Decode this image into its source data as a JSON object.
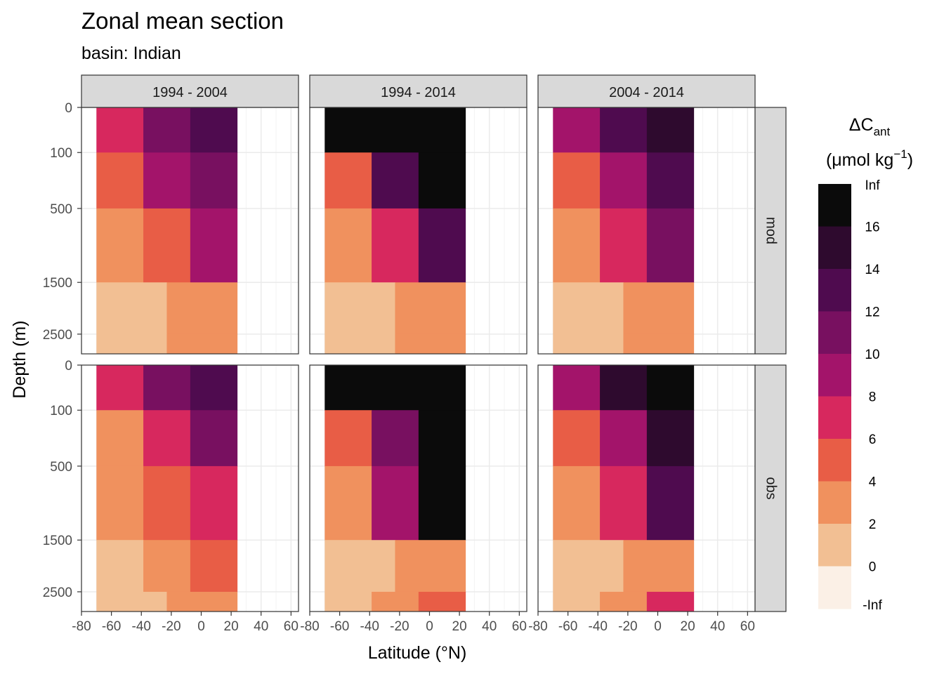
{
  "chart_data": {
    "type": "heatmap",
    "title": "Zonal mean section",
    "subtitle": "basin: Indian",
    "xlabel": "Latitude (°N)",
    "ylabel": "Depth (m)",
    "xlim": [
      -80,
      65
    ],
    "x_ticks": [
      "-80",
      "-60",
      "-40",
      "-20",
      "0",
      "20",
      "40",
      "60"
    ],
    "y_ticks": [
      "0",
      "100",
      "500",
      "1500",
      "2500"
    ],
    "y_reversed": true,
    "facet_columns": [
      "1994 - 2004",
      "1994 - 2014",
      "2004 - 2014"
    ],
    "facet_rows": [
      "mod",
      "obs"
    ],
    "legend": {
      "title_main": "ΔC",
      "title_sub": "ant",
      "units_prefix": "(μmol kg",
      "units_sup": "−1",
      "units_suffix": ")",
      "placement": "right",
      "breaks": [
        "Inf",
        "16",
        "14",
        "12",
        "10",
        "8",
        "6",
        "4",
        "2",
        "0",
        "-Inf"
      ],
      "colors": [
        "#0b0b0b",
        "#2e0a2e",
        "#4f0b4f",
        "#781060",
        "#a3146a",
        "#d7285e",
        "#e85d46",
        "#f0915e",
        "#f2bf93",
        "#fbf0e6"
      ]
    },
    "panels": [
      {
        "row": "mod",
        "column": "1994 - 2004",
        "lat_range": [
          -70,
          24
        ],
        "levels_by_depth": {
          "0": [
            6,
            10,
            12
          ],
          "100": [
            4,
            8,
            10
          ],
          "500": [
            2,
            4,
            8
          ],
          "1500": [
            0,
            2
          ],
          "2500": [
            0,
            2
          ]
        }
      },
      {
        "row": "mod",
        "column": "1994 - 2014",
        "lat_range": [
          -70,
          24
        ],
        "levels_by_depth": {
          "0": [
            16,
            "Inf"
          ],
          "100": [
            4,
            12,
            16
          ],
          "500": [
            2,
            6,
            12
          ],
          "1500": [
            0,
            2
          ],
          "2500": [
            0,
            2
          ]
        }
      },
      {
        "row": "mod",
        "column": "2004 - 2014",
        "lat_range": [
          -70,
          24
        ],
        "levels_by_depth": {
          "0": [
            8,
            12,
            14
          ],
          "100": [
            4,
            8,
            12
          ],
          "500": [
            2,
            6,
            10
          ],
          "1500": [
            0,
            2
          ],
          "2500": [
            0,
            2
          ]
        }
      },
      {
        "row": "obs",
        "column": "1994 - 2004",
        "lat_range": [
          -70,
          24
        ],
        "levels_by_depth": {
          "0": [
            6,
            10,
            12
          ],
          "100": [
            2,
            6,
            10
          ],
          "500": [
            2,
            4,
            6
          ],
          "1500": [
            0,
            2,
            4
          ],
          "2500": [
            0,
            2
          ]
        }
      },
      {
        "row": "obs",
        "column": "1994 - 2014",
        "lat_range": [
          -70,
          24
        ],
        "levels_by_depth": {
          "0": [
            16,
            "Inf"
          ],
          "100": [
            4,
            10,
            16
          ],
          "500": [
            2,
            8,
            16
          ],
          "1500": [
            0,
            2
          ],
          "2500": [
            0,
            2,
            4
          ]
        }
      },
      {
        "row": "obs",
        "column": "2004 - 2014",
        "lat_range": [
          -70,
          24
        ],
        "levels_by_depth": {
          "0": [
            8,
            14,
            16
          ],
          "100": [
            4,
            8,
            14
          ],
          "500": [
            2,
            6,
            12
          ],
          "1500": [
            0,
            2
          ],
          "2500": [
            0,
            2,
            6
          ]
        }
      }
    ]
  }
}
